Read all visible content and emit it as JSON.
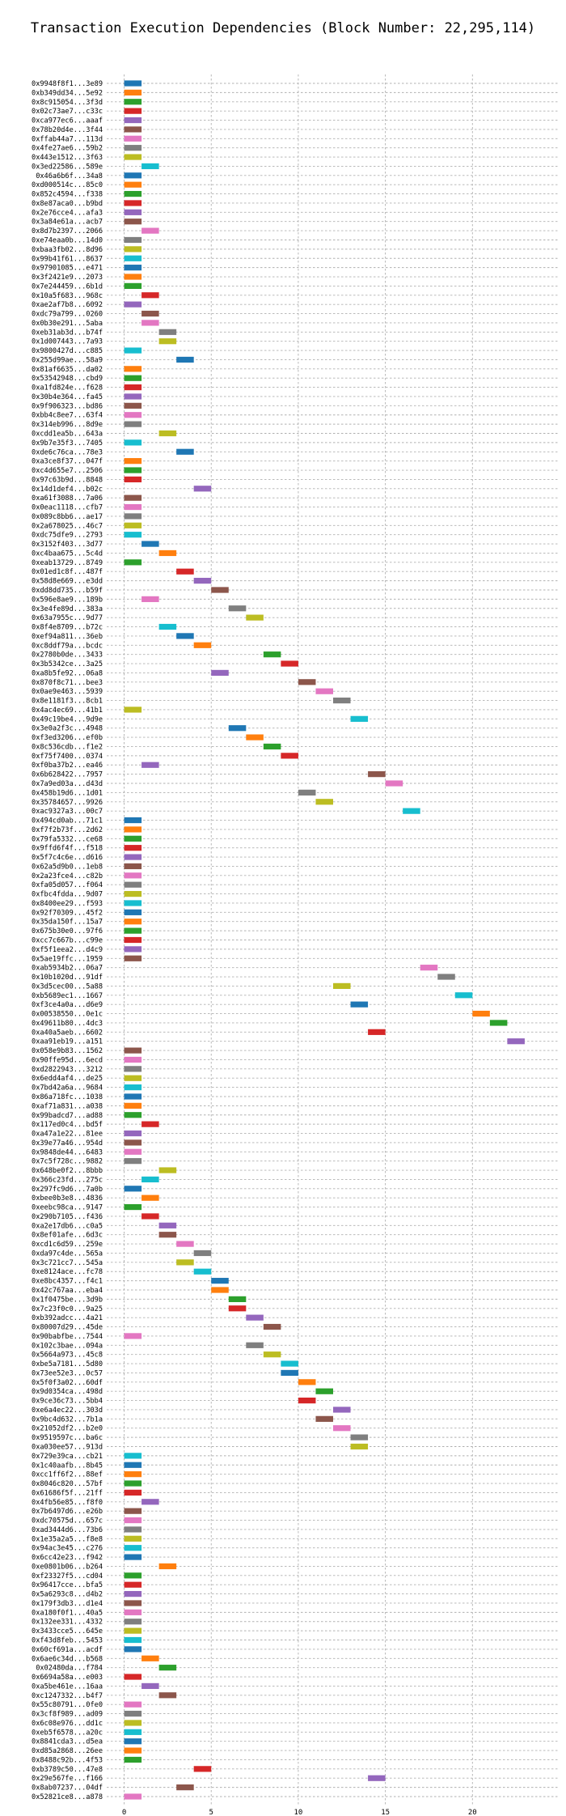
{
  "chart_data": {
    "type": "bar",
    "orientation": "horizontal-gantt",
    "title": "Transaction Execution Dependencies (Block Number: 22,295,114)",
    "xlabel": "",
    "ylabel": "",
    "xlim": [
      -1,
      25
    ],
    "xticks": [
      0,
      5,
      10,
      15,
      20
    ],
    "grid": true,
    "bar_duration": 1,
    "palette": [
      "#1f77b4",
      "#ff7f0e",
      "#2ca02c",
      "#d62728",
      "#9467bd",
      "#8c564b",
      "#e377c2",
      "#7f7f7f",
      "#bcbd22",
      "#17becf"
    ],
    "transactions": [
      {
        "label": "0x9948f8f1...3e89",
        "start": 0
      },
      {
        "label": "0xb349dd34...5e92",
        "start": 0
      },
      {
        "label": "0x8c915054...3f3d",
        "start": 0
      },
      {
        "label": "0x02c73ae7...c33c",
        "start": 0
      },
      {
        "label": "0xca977ec6...aaaf",
        "start": 0
      },
      {
        "label": "0x78b20d4e...3f44",
        "start": 0
      },
      {
        "label": "0xffab44a7...113d",
        "start": 0
      },
      {
        "label": "0x4fe27ae6...59b2",
        "start": 0
      },
      {
        "label": "0x443e1512...3f63",
        "start": 0
      },
      {
        "label": "0x3ed22586...589e",
        "start": 1
      },
      {
        "label": "0x46a6b6f...34a8",
        "start": 0
      },
      {
        "label": "0xd000514c...85c0",
        "start": 0
      },
      {
        "label": "0x852c4594...f338",
        "start": 0
      },
      {
        "label": "0x8e87aca0...b9bd",
        "start": 0
      },
      {
        "label": "0x2e76cce4...afa3",
        "start": 0
      },
      {
        "label": "0x3a84e61a...acb7",
        "start": 0
      },
      {
        "label": "0x8d7b2397...2066",
        "start": 1
      },
      {
        "label": "0xe74eaa0b...14d0",
        "start": 0
      },
      {
        "label": "0xbaa3fb02...8d96",
        "start": 0
      },
      {
        "label": "0x99b41f61...8637",
        "start": 0
      },
      {
        "label": "0x97901085...e471",
        "start": 0
      },
      {
        "label": "0x3f2421e9...2073",
        "start": 0
      },
      {
        "label": "0x7e244459...6b1d",
        "start": 0
      },
      {
        "label": "0x10a5f683...968c",
        "start": 1
      },
      {
        "label": "0xae2af7b8...6092",
        "start": 0
      },
      {
        "label": "0xdc79a799...0260",
        "start": 1
      },
      {
        "label": "0x0b30e291...5aba",
        "start": 1
      },
      {
        "label": "0xeb31ab3d...b74f",
        "start": 2
      },
      {
        "label": "0x1d007443...7a93",
        "start": 2
      },
      {
        "label": "0x9800427d...c885",
        "start": 0
      },
      {
        "label": "0x255d99ae...58a9",
        "start": 3
      },
      {
        "label": "0x81af6635...da02",
        "start": 0
      },
      {
        "label": "0x53542948...cbd9",
        "start": 0
      },
      {
        "label": "0xa1fd824e...f628",
        "start": 0
      },
      {
        "label": "0x30b4e364...fa45",
        "start": 0
      },
      {
        "label": "0x9f906323...bd86",
        "start": 0
      },
      {
        "label": "0xbb4c8ee7...63f4",
        "start": 0
      },
      {
        "label": "0x314eb996...8d9e",
        "start": 0
      },
      {
        "label": "0xcdd1ea5b...643a",
        "start": 2
      },
      {
        "label": "0x9b7e35f3...7405",
        "start": 0
      },
      {
        "label": "0xde6c76ca...78e3",
        "start": 3
      },
      {
        "label": "0xa3ce8f37...047f",
        "start": 0
      },
      {
        "label": "0xc4d655e7...2506",
        "start": 0
      },
      {
        "label": "0x97c63b9d...8848",
        "start": 0
      },
      {
        "label": "0x14d1def4...b02c",
        "start": 4
      },
      {
        "label": "0xa61f3088...7a06",
        "start": 0
      },
      {
        "label": "0x0eac1118...cfb7",
        "start": 0
      },
      {
        "label": "0x089c8bb6...ae17",
        "start": 0
      },
      {
        "label": "0x2a678025...46c7",
        "start": 0
      },
      {
        "label": "0xdc75dfe9...2793",
        "start": 0
      },
      {
        "label": "0x3152f403...3d77",
        "start": 1
      },
      {
        "label": "0xc4baa675...5c4d",
        "start": 2
      },
      {
        "label": "0xeab13729...8749",
        "start": 0
      },
      {
        "label": "0x01ed1c8f...487f",
        "start": 3
      },
      {
        "label": "0x58d8e669...e3dd",
        "start": 4
      },
      {
        "label": "0xdd8dd735...b59f",
        "start": 5
      },
      {
        "label": "0x596e8ae9...189b",
        "start": 1
      },
      {
        "label": "0x3e4fe89d...383a",
        "start": 6
      },
      {
        "label": "0x63a7955c...9d77",
        "start": 7
      },
      {
        "label": "0x8f4e8709...b72c",
        "start": 2
      },
      {
        "label": "0xef94a811...36eb",
        "start": 3
      },
      {
        "label": "0xc8ddf79a...bcdc",
        "start": 4
      },
      {
        "label": "0x2780b0de...3433",
        "start": 8
      },
      {
        "label": "0x3b5342ce...3a25",
        "start": 9
      },
      {
        "label": "0xa8b5fe92...06a8",
        "start": 5
      },
      {
        "label": "0x870f8c71...bee3",
        "start": 10
      },
      {
        "label": "0x0ae9e463...5939",
        "start": 11
      },
      {
        "label": "0x8e1181f3...8cb1",
        "start": 12
      },
      {
        "label": "0x4ac4ec69...41b1",
        "start": 0
      },
      {
        "label": "0x49c19be4...9d9e",
        "start": 13
      },
      {
        "label": "0x3e0a2f3c...4948",
        "start": 6
      },
      {
        "label": "0xf3ed3206...ef0b",
        "start": 7
      },
      {
        "label": "0x8c536cdb...f1e2",
        "start": 8
      },
      {
        "label": "0xf75f7400...0374",
        "start": 9
      },
      {
        "label": "0xf0ba37b2...ea46",
        "start": 1
      },
      {
        "label": "0x6b628422...7957",
        "start": 14
      },
      {
        "label": "0x7a9ed03a...d43d",
        "start": 15
      },
      {
        "label": "0x458b19d6...1d01",
        "start": 10
      },
      {
        "label": "0x35784657...9926",
        "start": 11
      },
      {
        "label": "0xac9327a3...00c7",
        "start": 16
      },
      {
        "label": "0x494cd0ab...71c1",
        "start": 0
      },
      {
        "label": "0xf7f2b73f...2d62",
        "start": 0
      },
      {
        "label": "0x79fa5332...ce68",
        "start": 0
      },
      {
        "label": "0x9ffd6f4f...f518",
        "start": 0
      },
      {
        "label": "0x5f7c4c6e...d616",
        "start": 0
      },
      {
        "label": "0x62a5d9b0...1eb8",
        "start": 0
      },
      {
        "label": "0x2a23fce4...c82b",
        "start": 0
      },
      {
        "label": "0xfa05d057...f064",
        "start": 0
      },
      {
        "label": "0xfbc4fdda...9d07",
        "start": 0
      },
      {
        "label": "0x8400ee29...f593",
        "start": 0
      },
      {
        "label": "0x92f70309...45f2",
        "start": 0
      },
      {
        "label": "0x35da150f...15a7",
        "start": 0
      },
      {
        "label": "0x675b30e0...97f6",
        "start": 0
      },
      {
        "label": "0xcc7c667b...c99e",
        "start": 0
      },
      {
        "label": "0xf5f1eea2...d4c9",
        "start": 0
      },
      {
        "label": "0x5ae19ffc...1959",
        "start": 0
      },
      {
        "label": "0xab5934b2...06a7",
        "start": 17
      },
      {
        "label": "0x10b1020d...91df",
        "start": 18
      },
      {
        "label": "0x3d5cec00...5a88",
        "start": 12
      },
      {
        "label": "0xb5689ec1...1667",
        "start": 19
      },
      {
        "label": "0xf3ce4a0a...d6e9",
        "start": 13
      },
      {
        "label": "0x00538550...0e1c",
        "start": 20
      },
      {
        "label": "0x49611b80...4dc3",
        "start": 21
      },
      {
        "label": "0xa40a5aeb...6602",
        "start": 14
      },
      {
        "label": "0xaa91eb19...a151",
        "start": 22
      },
      {
        "label": "0x058e9b83...1562",
        "start": 0
      },
      {
        "label": "0x90ffe95d...6ecd",
        "start": 0
      },
      {
        "label": "0xd2822943...3212",
        "start": 0
      },
      {
        "label": "0x6edd4af4...de25",
        "start": 0
      },
      {
        "label": "0x7bd42a6a...9684",
        "start": 0
      },
      {
        "label": "0x86a718fc...1038",
        "start": 0
      },
      {
        "label": "0xaf71a831...a038",
        "start": 0
      },
      {
        "label": "0x99badcd7...ad88",
        "start": 0
      },
      {
        "label": "0x117ed0c4...bd5f",
        "start": 1
      },
      {
        "label": "0xa47a1e22...81ee",
        "start": 0
      },
      {
        "label": "0x39e77a46...954d",
        "start": 0
      },
      {
        "label": "0x9848de44...6483",
        "start": 0
      },
      {
        "label": "0x7c5f728c...9882",
        "start": 0
      },
      {
        "label": "0x648be0f2...8bbb",
        "start": 2
      },
      {
        "label": "0x366c23fd...275c",
        "start": 1
      },
      {
        "label": "0x297fc9d6...7a0b",
        "start": 0
      },
      {
        "label": "0xbee0b3e8...4836",
        "start": 1
      },
      {
        "label": "0xeebc98ca...9147",
        "start": 0
      },
      {
        "label": "0x290b7105...f436",
        "start": 1
      },
      {
        "label": "0xa2e17db6...c0a5",
        "start": 2
      },
      {
        "label": "0x8ef01afe...6d3c",
        "start": 2
      },
      {
        "label": "0xcd1c6d59...259e",
        "start": 3
      },
      {
        "label": "0xda97c4de...565a",
        "start": 4
      },
      {
        "label": "0x3c721cc7...545a",
        "start": 3
      },
      {
        "label": "0xe8124ace...fc78",
        "start": 4
      },
      {
        "label": "0xe8bc4357...f4c1",
        "start": 5
      },
      {
        "label": "0x42c767aa...eba4",
        "start": 5
      },
      {
        "label": "0x1f0475be...3d9b",
        "start": 6
      },
      {
        "label": "0x7c23f0c0...9a25",
        "start": 6
      },
      {
        "label": "0xb392adcc...4a21",
        "start": 7
      },
      {
        "label": "0x80007d29...45de",
        "start": 8
      },
      {
        "label": "0x90babfbe...7544",
        "start": 0
      },
      {
        "label": "0x102c3bae...094a",
        "start": 7
      },
      {
        "label": "0x5664a973...45c8",
        "start": 8
      },
      {
        "label": "0xbe5a7181...5d80",
        "start": 9
      },
      {
        "label": "0x73ee52e3...0c57",
        "start": 9
      },
      {
        "label": "0x5f0f3a02...60df",
        "start": 10
      },
      {
        "label": "0x9d0354ca...498d",
        "start": 11
      },
      {
        "label": "0x9ce36c73...5bb4",
        "start": 10
      },
      {
        "label": "0xe6a4ec22...303d",
        "start": 12
      },
      {
        "label": "0x9bc4d632...7b1a",
        "start": 11
      },
      {
        "label": "0x21052df2...b2e0",
        "start": 12
      },
      {
        "label": "0x9519597c...ba6c",
        "start": 13
      },
      {
        "label": "0xa030ee57...913d",
        "start": 13
      },
      {
        "label": "0x729e39ca...cb21",
        "start": 0
      },
      {
        "label": "0x1c40aafb...8b45",
        "start": 0
      },
      {
        "label": "0xcc1ff6f2...88ef",
        "start": 0
      },
      {
        "label": "0x8046c820...57bf",
        "start": 0
      },
      {
        "label": "0x61686f5f...21ff",
        "start": 0
      },
      {
        "label": "0x4fb56e85...f8f0",
        "start": 1
      },
      {
        "label": "0x7b6497d6...e26b",
        "start": 0
      },
      {
        "label": "0xdc70575d...657c",
        "start": 0
      },
      {
        "label": "0xad3444d6...73b6",
        "start": 0
      },
      {
        "label": "0x1e35a2a5...f8e8",
        "start": 0
      },
      {
        "label": "0x94ac3e45...c276",
        "start": 0
      },
      {
        "label": "0x6cc42e23...f942",
        "start": 0
      },
      {
        "label": "0xe0801b06...b264",
        "start": 2
      },
      {
        "label": "0xf23327f5...cd04",
        "start": 0
      },
      {
        "label": "0x96417cce...bfa5",
        "start": 0
      },
      {
        "label": "0x5a6293c8...d4b2",
        "start": 0
      },
      {
        "label": "0x179f3db3...d1e4",
        "start": 0
      },
      {
        "label": "0xa180f0f1...40a5",
        "start": 0
      },
      {
        "label": "0x132ee331...4332",
        "start": 0
      },
      {
        "label": "0x3433cce5...645e",
        "start": 0
      },
      {
        "label": "0xf43d8feb...5453",
        "start": 0
      },
      {
        "label": "0x60cf691a...acdf",
        "start": 0
      },
      {
        "label": "0x6ae6c34d...b568",
        "start": 1
      },
      {
        "label": "0x02480da...f784",
        "start": 2
      },
      {
        "label": "0x6694a58a...e003",
        "start": 0
      },
      {
        "label": "0xa5be461e...16aa",
        "start": 1
      },
      {
        "label": "0xc1247332...b4f7",
        "start": 2
      },
      {
        "label": "0x55c80791...0fe0",
        "start": 0
      },
      {
        "label": "0x3cf8f989...ad09",
        "start": 0
      },
      {
        "label": "0x6c08e976...dd1c",
        "start": 0
      },
      {
        "label": "0xeb5f6578...a20c",
        "start": 0
      },
      {
        "label": "0x8841cda3...d5ea",
        "start": 0
      },
      {
        "label": "0xd85a2868...26ee",
        "start": 0
      },
      {
        "label": "0x8488c92b...4f53",
        "start": 0
      },
      {
        "label": "0xb3789c50...47e8",
        "start": 4
      },
      {
        "label": "0x29e567fe...f166",
        "start": 14
      },
      {
        "label": "0x8ab07237...04df",
        "start": 3
      },
      {
        "label": "0x52821ce8...a878",
        "start": 0
      }
    ]
  }
}
